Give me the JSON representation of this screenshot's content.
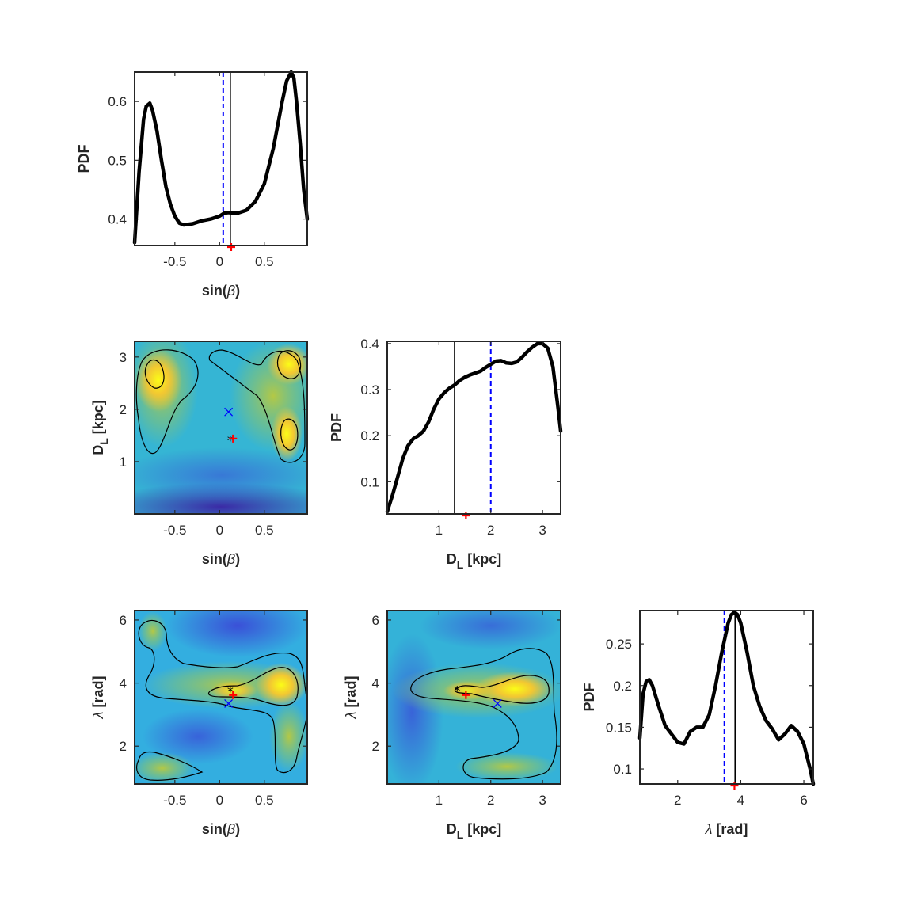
{
  "colors": {
    "curve": "#000000",
    "median_line": "#000000",
    "mean_line": "#0000ff",
    "true_marker": "#ff0000",
    "cross_marker": "#0000ff",
    "frame": "#262626"
  },
  "chart_data": [
    {
      "id": "sinb-pdf",
      "type": "line",
      "xlabel": "sin(β)",
      "ylabel": "PDF",
      "xlim": [
        -0.95,
        0.98
      ],
      "ylim": [
        0.355,
        0.65
      ],
      "xticks": [
        -0.5,
        0,
        0.5
      ],
      "xtick_labels": [
        "-0.5",
        "0",
        "0.5"
      ],
      "yticks": [
        0.4,
        0.5,
        0.6
      ],
      "ytick_labels": [
        "0.4",
        "0.5",
        "0.6"
      ],
      "x": [
        -0.95,
        -0.9,
        -0.85,
        -0.82,
        -0.78,
        -0.75,
        -0.7,
        -0.65,
        -0.6,
        -0.55,
        -0.5,
        -0.45,
        -0.4,
        -0.3,
        -0.2,
        -0.1,
        0,
        0.05,
        0.1,
        0.15,
        0.2,
        0.3,
        0.4,
        0.5,
        0.6,
        0.7,
        0.75,
        0.8,
        0.83,
        0.86,
        0.9,
        0.94,
        0.98
      ],
      "y": [
        0.36,
        0.48,
        0.57,
        0.592,
        0.597,
        0.585,
        0.55,
        0.5,
        0.455,
        0.425,
        0.405,
        0.393,
        0.39,
        0.392,
        0.397,
        0.4,
        0.405,
        0.41,
        0.411,
        0.41,
        0.41,
        0.415,
        0.43,
        0.46,
        0.52,
        0.6,
        0.635,
        0.65,
        0.64,
        0.6,
        0.53,
        0.45,
        0.4
      ],
      "median_x": 0.12,
      "mean_x": 0.04,
      "true_x": 0.13
    },
    {
      "id": "dl-sinb-heatmap",
      "type": "heatmap",
      "xlabel": "sin(β)",
      "ylabel": "DL [kpc]",
      "xlim": [
        -0.95,
        0.98
      ],
      "ylim": [
        0,
        3.3
      ],
      "xticks": [
        -0.5,
        0,
        0.5
      ],
      "xtick_labels": [
        "-0.5",
        "0",
        "0.5"
      ],
      "yticks": [
        1,
        2,
        3
      ],
      "ytick_labels": [
        "1",
        "2",
        "3"
      ],
      "median_point": [
        0.12,
        1.4
      ],
      "true_point": [
        0.15,
        1.44
      ],
      "cross_point": [
        0.1,
        1.95
      ]
    },
    {
      "id": "dl-pdf",
      "type": "line",
      "xlabel": "DL [kpc]",
      "ylabel": "PDF",
      "xlim": [
        0,
        3.35
      ],
      "ylim": [
        0.03,
        0.405
      ],
      "xticks": [
        1,
        2,
        3
      ],
      "xtick_labels": [
        "1",
        "2",
        "3"
      ],
      "yticks": [
        0.1,
        0.2,
        0.3,
        0.4
      ],
      "ytick_labels": [
        "0.1",
        "0.2",
        "0.3",
        "0.4"
      ],
      "x": [
        0,
        0.1,
        0.2,
        0.3,
        0.4,
        0.5,
        0.6,
        0.7,
        0.8,
        0.9,
        1.0,
        1.1,
        1.2,
        1.3,
        1.4,
        1.5,
        1.6,
        1.7,
        1.8,
        1.9,
        2.0,
        2.1,
        2.2,
        2.3,
        2.4,
        2.5,
        2.6,
        2.7,
        2.8,
        2.9,
        3.0,
        3.1,
        3.2,
        3.3,
        3.35
      ],
      "y": [
        0.035,
        0.07,
        0.11,
        0.15,
        0.178,
        0.193,
        0.2,
        0.21,
        0.23,
        0.258,
        0.28,
        0.293,
        0.303,
        0.31,
        0.32,
        0.327,
        0.332,
        0.336,
        0.34,
        0.348,
        0.355,
        0.362,
        0.363,
        0.358,
        0.357,
        0.36,
        0.37,
        0.382,
        0.392,
        0.4,
        0.4,
        0.39,
        0.35,
        0.26,
        0.21
      ],
      "median_x": 1.3,
      "mean_x": 2.0,
      "true_x": 1.52
    },
    {
      "id": "lambda-sinb-heatmap",
      "type": "heatmap",
      "xlabel": "sin(β)",
      "ylabel": "λ [rad]",
      "xlim": [
        -0.95,
        0.98
      ],
      "ylim": [
        0.8,
        6.3
      ],
      "xticks": [
        -0.5,
        0,
        0.5
      ],
      "xtick_labels": [
        "-0.5",
        "0",
        "0.5"
      ],
      "yticks": [
        2,
        4,
        6
      ],
      "ytick_labels": [
        "2",
        "4",
        "6"
      ],
      "median_point": [
        0.12,
        3.72
      ],
      "true_point": [
        0.15,
        3.62
      ],
      "cross_point": [
        0.1,
        3.35
      ]
    },
    {
      "id": "lambda-dl-heatmap",
      "type": "heatmap",
      "xlabel": "DL [kpc]",
      "ylabel": "λ [rad]",
      "xlim": [
        0,
        3.35
      ],
      "ylim": [
        0.8,
        6.3
      ],
      "xticks": [
        1,
        2,
        3
      ],
      "xtick_labels": [
        "1",
        "2",
        "3"
      ],
      "yticks": [
        2,
        4,
        6
      ],
      "ytick_labels": [
        "2",
        "4",
        "6"
      ],
      "median_point": [
        1.35,
        3.75
      ],
      "true_point": [
        1.52,
        3.62
      ],
      "cross_point": [
        2.13,
        3.35
      ]
    },
    {
      "id": "lambda-pdf",
      "type": "line",
      "xlabel": "λ [rad]",
      "ylabel": "PDF",
      "xlim": [
        0.8,
        6.3
      ],
      "ylim": [
        0.082,
        0.29
      ],
      "xticks": [
        2,
        4,
        6
      ],
      "xtick_labels": [
        "2",
        "4",
        "6"
      ],
      "yticks": [
        0.1,
        0.15,
        0.2,
        0.25
      ],
      "ytick_labels": [
        "0.1",
        "0.15",
        "0.2",
        "0.25"
      ],
      "x": [
        0.8,
        0.9,
        1.0,
        1.1,
        1.2,
        1.4,
        1.6,
        1.8,
        2.0,
        2.2,
        2.4,
        2.6,
        2.8,
        3.0,
        3.2,
        3.4,
        3.6,
        3.7,
        3.8,
        3.9,
        4.0,
        4.2,
        4.4,
        4.6,
        4.8,
        5.0,
        5.2,
        5.4,
        5.6,
        5.8,
        6.0,
        6.2,
        6.3
      ],
      "y": [
        0.137,
        0.19,
        0.205,
        0.207,
        0.2,
        0.175,
        0.152,
        0.142,
        0.132,
        0.13,
        0.145,
        0.15,
        0.15,
        0.165,
        0.2,
        0.24,
        0.275,
        0.285,
        0.288,
        0.285,
        0.275,
        0.24,
        0.2,
        0.175,
        0.158,
        0.148,
        0.135,
        0.142,
        0.152,
        0.145,
        0.13,
        0.1,
        0.082
      ],
      "median_x": 3.82,
      "mean_x": 3.48,
      "true_x": 3.8
    }
  ]
}
